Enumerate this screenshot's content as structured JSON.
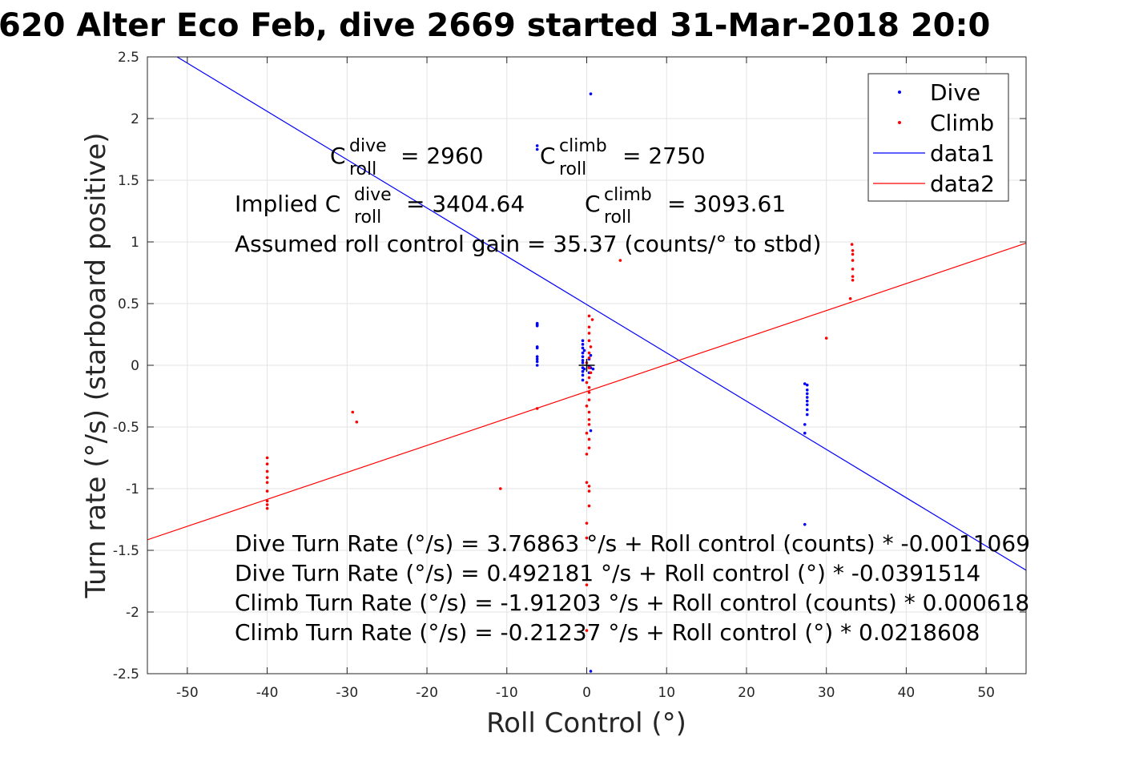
{
  "chart_data": {
    "type": "scatter",
    "title": "620 Alter Eco Feb, dive 2669 started 31-Mar-2018 20:0",
    "xlabel": "Roll Control (°)",
    "ylabel": "Turn rate (°/s) (starboard positive)",
    "xlim": [
      -55,
      55
    ],
    "ylim": [
      -2.5,
      2.5
    ],
    "xticks": [
      -50,
      -40,
      -30,
      -20,
      -10,
      0,
      10,
      20,
      30,
      40,
      50
    ],
    "yticks": [
      -2.5,
      -2,
      -1.5,
      -1,
      -0.5,
      0,
      0.5,
      1,
      1.5,
      2,
      2.5
    ],
    "xtick_labels": [
      "-50",
      "-40",
      "-30",
      "-20",
      "-10",
      "0",
      "10",
      "20",
      "30",
      "40",
      "50"
    ],
    "ytick_labels": [
      "-2.5",
      "-2",
      "-1.5",
      "-1",
      "-0.5",
      "0",
      "0.5",
      "1",
      "1.5",
      "2",
      "2.5"
    ],
    "grid": true,
    "legend_position": "top-right",
    "series": [
      {
        "name": "Dive",
        "kind": "points",
        "color": "#0000ff",
        "points": [
          [
            0.5,
            2.2
          ],
          [
            -6.2,
            1.78
          ],
          [
            -6.2,
            1.75
          ],
          [
            -6.2,
            0.34
          ],
          [
            -6.2,
            0.33
          ],
          [
            -6.2,
            0.32
          ],
          [
            -6.2,
            0.15
          ],
          [
            -6.2,
            0.14
          ],
          [
            -6.2,
            0.07
          ],
          [
            -6.2,
            0.05
          ],
          [
            -6.2,
            0.03
          ],
          [
            -6.2,
            0.0
          ],
          [
            -0.5,
            0.2
          ],
          [
            -0.5,
            0.17
          ],
          [
            -0.5,
            0.14
          ],
          [
            -0.5,
            0.1
          ],
          [
            -0.5,
            0.07
          ],
          [
            -0.5,
            0.04
          ],
          [
            -0.5,
            0.02
          ],
          [
            -0.5,
            -0.02
          ],
          [
            -0.5,
            -0.05
          ],
          [
            -0.5,
            -0.08
          ],
          [
            -0.5,
            -0.12
          ],
          [
            -0.3,
            0.12
          ],
          [
            -0.3,
            -0.03
          ],
          [
            0.3,
            0.05
          ],
          [
            0.3,
            -0.01
          ],
          [
            0.3,
            -0.06
          ],
          [
            0.5,
            0.08
          ],
          [
            0.5,
            -0.02
          ],
          [
            0.8,
            -0.03
          ],
          [
            0.5,
            -0.53
          ],
          [
            27.3,
            -0.15
          ],
          [
            27.6,
            -0.16
          ],
          [
            27.6,
            -0.2
          ],
          [
            27.6,
            -0.23
          ],
          [
            27.6,
            -0.26
          ],
          [
            27.6,
            -0.29
          ],
          [
            27.6,
            -0.32
          ],
          [
            27.6,
            -0.36
          ],
          [
            27.6,
            -0.4
          ],
          [
            27.3,
            -0.48
          ],
          [
            27.3,
            -0.55
          ],
          [
            27.3,
            -1.29
          ],
          [
            0.5,
            -2.48
          ]
        ]
      },
      {
        "name": "Climb",
        "kind": "points",
        "color": "#ff0000",
        "points": [
          [
            -40,
            -0.75
          ],
          [
            -40,
            -0.8
          ],
          [
            -40,
            -0.86
          ],
          [
            -40,
            -0.91
          ],
          [
            -40,
            -0.95
          ],
          [
            -40,
            -1.02
          ],
          [
            -40,
            -1.1
          ],
          [
            -40,
            -1.13
          ],
          [
            -40,
            -1.16
          ],
          [
            -29.3,
            -0.38
          ],
          [
            -28.8,
            -0.46
          ],
          [
            -10.8,
            -1.0
          ],
          [
            -6.2,
            -0.35
          ],
          [
            0.3,
            0.4
          ],
          [
            0.7,
            0.37
          ],
          [
            0.3,
            0.31
          ],
          [
            0.3,
            0.26
          ],
          [
            0.3,
            0.2
          ],
          [
            0.5,
            0.15
          ],
          [
            0.3,
            0.1
          ],
          [
            0.3,
            0.06
          ],
          [
            0.0,
            0.02
          ],
          [
            0.3,
            -0.02
          ],
          [
            0.5,
            -0.06
          ],
          [
            0.3,
            -0.1
          ],
          [
            0.0,
            -0.14
          ],
          [
            0.3,
            -0.18
          ],
          [
            0.3,
            -0.22
          ],
          [
            0.3,
            -0.28
          ],
          [
            0.0,
            -0.33
          ],
          [
            0.3,
            -0.38
          ],
          [
            0.3,
            -0.44
          ],
          [
            0.3,
            -0.48
          ],
          [
            0.0,
            -0.55
          ],
          [
            0.3,
            -0.6
          ],
          [
            0.3,
            -0.67
          ],
          [
            0.0,
            -0.72
          ],
          [
            0.0,
            -0.95
          ],
          [
            0.3,
            -0.98
          ],
          [
            0.3,
            -1.02
          ],
          [
            0.3,
            -1.14
          ],
          [
            0.0,
            -1.28
          ],
          [
            0.0,
            -1.4
          ],
          [
            0.0,
            -1.78
          ],
          [
            0.0,
            -2.15
          ],
          [
            4.2,
            0.85
          ],
          [
            30.0,
            0.22
          ],
          [
            33.2,
            0.98
          ],
          [
            33.3,
            0.93
          ],
          [
            33.3,
            0.9
          ],
          [
            33.3,
            0.85
          ],
          [
            33.3,
            0.78
          ],
          [
            33.3,
            0.72
          ],
          [
            33.3,
            0.69
          ],
          [
            33.0,
            0.54
          ]
        ]
      },
      {
        "name": "data1",
        "kind": "line",
        "color": "#0000ff",
        "intercept": 0.492181,
        "slope": -0.0391514
      },
      {
        "name": "data2",
        "kind": "line",
        "color": "#ff0000",
        "intercept": -0.21237,
        "slope": 0.0218608
      }
    ],
    "annotations": {
      "c_roll_dive_label": "C",
      "c_roll_dive_sup": "dive",
      "c_roll_dive_sub": "roll",
      "c_roll_dive_value": "= 2960",
      "c_roll_climb_label": "C",
      "c_roll_climb_sup": "climb",
      "c_roll_climb_sub": "roll",
      "c_roll_climb_value": "= 2750",
      "implied_prefix": "Implied C",
      "implied_dive_sup": "dive",
      "implied_dive_sub": "roll",
      "implied_dive_value": "= 3404.64",
      "implied_climb_label": "C",
      "implied_climb_sup": "climb",
      "implied_climb_sub": "roll",
      "implied_climb_value": "= 3093.61",
      "gain": "Assumed roll control gain = 35.37 (counts/° to stbd)",
      "eq1": "Dive Turn Rate (°/s) = 3.76863 °/s + Roll control (counts) * -0.0011069",
      "eq2": "Dive Turn Rate (°/s) = 0.492181 °/s + Roll control (°) * -0.0391514",
      "eq3": "Climb Turn Rate (°/s) = -1.91203 °/s + Roll control (counts) * 0.000618",
      "eq4": "Climb Turn Rate (°/s) = -0.21237 °/s + Roll control (°) * 0.0218608"
    }
  }
}
